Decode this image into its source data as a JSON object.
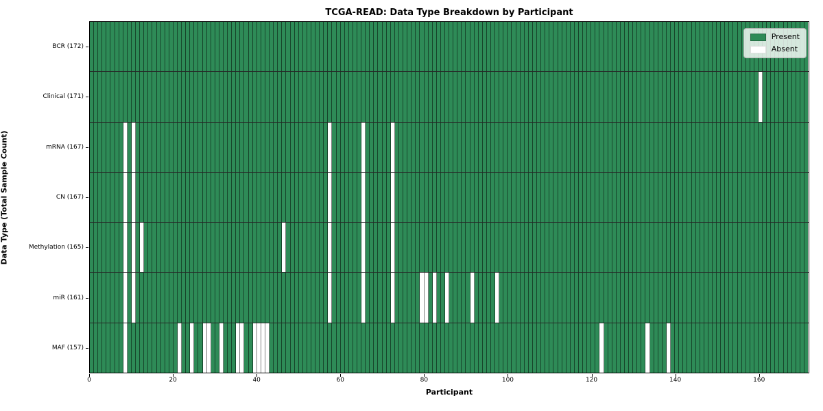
{
  "title": "TCGA-READ: Data Type Breakdown by Participant",
  "xlabel": "Participant",
  "ylabel": "Data Type (Total Sample Count)",
  "legend": {
    "present_label": "Present",
    "absent_label": "Absent"
  },
  "colors": {
    "present": "#2e8b57",
    "absent": "#ffffff"
  },
  "chart_data": {
    "type": "heatmap",
    "title": "TCGA-READ: Data Type Breakdown by Participant",
    "xlabel": "Participant",
    "ylabel": "Data Type (Total Sample Count)",
    "legend_entries": [
      "Present",
      "Absent"
    ],
    "legend_position": "upper right",
    "grid": true,
    "n_participants": 172,
    "x_range": [
      0,
      172
    ],
    "x_ticks": [
      0,
      20,
      40,
      60,
      80,
      100,
      120,
      140,
      160
    ],
    "rows": [
      {
        "name": "BCR",
        "label": "BCR (172)",
        "present_count": 172,
        "absent_participants": []
      },
      {
        "name": "Clinical",
        "label": "Clinical (171)",
        "present_count": 171,
        "absent_participants": [
          160
        ]
      },
      {
        "name": "mRNA",
        "label": "mRNA (167)",
        "present_count": 167,
        "absent_participants": [
          8,
          10,
          57,
          65,
          72
        ]
      },
      {
        "name": "CN",
        "label": "CN (167)",
        "present_count": 167,
        "absent_participants": [
          8,
          10,
          57,
          65,
          72
        ]
      },
      {
        "name": "Methylation",
        "label": "Methylation (165)",
        "present_count": 165,
        "absent_participants": [
          8,
          10,
          12,
          46,
          57,
          65,
          72
        ]
      },
      {
        "name": "miR",
        "label": "miR (161)",
        "present_count": 161,
        "absent_participants": [
          8,
          10,
          57,
          65,
          72,
          79,
          80,
          82,
          85,
          91,
          97
        ]
      },
      {
        "name": "MAF",
        "label": "MAF (157)",
        "present_count": 157,
        "absent_participants": [
          8,
          21,
          24,
          27,
          28,
          31,
          35,
          36,
          39,
          40,
          41,
          42,
          122,
          133,
          138
        ]
      }
    ]
  }
}
